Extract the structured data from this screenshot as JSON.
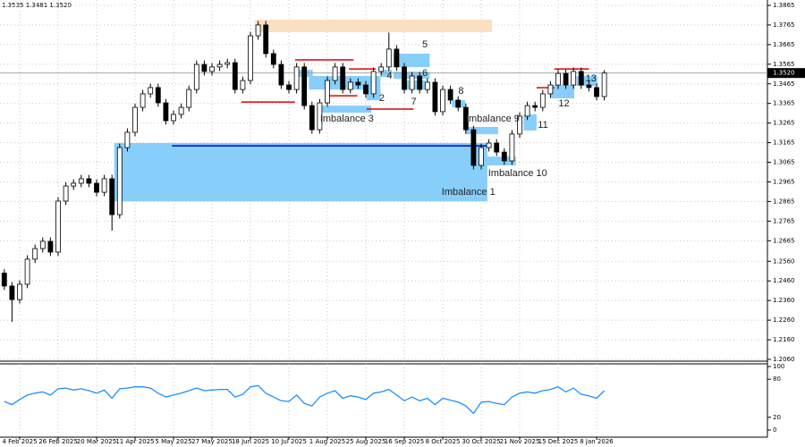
{
  "header_text": "1.3535 1.3481 1.3520",
  "chart_data": [
    {
      "type": "candlestick",
      "categories": [
        null,
        null,
        "4 Feb 2025",
        null,
        null,
        null,
        null,
        "26 Feb 2025",
        null,
        null,
        null,
        null,
        "20 Mar 2025",
        null,
        null,
        null,
        null,
        "11 Apr 2025",
        null,
        null,
        null,
        null,
        "5 May 2025",
        null,
        null,
        null,
        null,
        "27 May 2025",
        null,
        null,
        null,
        null,
        "18 Jun 2025",
        null,
        null,
        null,
        null,
        "10 Jul 2025",
        null,
        null,
        null,
        null,
        "1 Aug 2025",
        null,
        null,
        null,
        null,
        "25 Aug 2025",
        null,
        null,
        null,
        null,
        "16 Sep 2025",
        null,
        null,
        null,
        null,
        "8 Oct 2025",
        null,
        null,
        null,
        null,
        "30 Oct 2025",
        null,
        null,
        null,
        null,
        "21 Nov 2025",
        null,
        null,
        null,
        null,
        "15 Dec 2025",
        null,
        null,
        null,
        null,
        "8 Jan 2026",
        null
      ],
      "open": [
        1.25,
        1.2434,
        1.2365,
        1.2443,
        1.2571,
        1.2625,
        1.2662,
        1.2607,
        1.2867,
        1.2944,
        1.2958,
        1.2981,
        1.2958,
        1.2912,
        1.2981,
        1.2798,
        1.314,
        1.3218,
        1.3345,
        1.3414,
        1.3446,
        1.3368,
        1.3277,
        1.3309,
        1.3345,
        1.3436,
        1.3564,
        1.3528,
        1.3551,
        1.3564,
        1.3573,
        1.3436,
        1.3482,
        1.371,
        1.3765,
        1.3619,
        1.3564,
        1.3459,
        1.3436,
        1.3551,
        1.3354,
        1.3231,
        1.3368,
        1.3482,
        1.3551,
        1.3436,
        1.3473,
        1.3459,
        1.3414,
        1.3528,
        1.3551,
        1.3642,
        1.3551,
        1.3436,
        1.3505,
        1.3436,
        1.3473,
        1.3323,
        1.3436,
        1.3382,
        1.3345,
        1.3231,
        1.3049,
        1.314,
        1.3163,
        1.3117,
        1.3072,
        1.3209,
        1.33,
        1.3354,
        1.3345,
        1.3414,
        1.3459,
        1.3518,
        1.3459,
        1.3528,
        1.3459,
        1.3446,
        1.34
      ],
      "high": [
        1.252,
        1.2454,
        1.2463,
        1.2591,
        1.2645,
        1.2682,
        1.2682,
        1.2887,
        1.2964,
        1.2978,
        1.3001,
        1.3001,
        1.2978,
        1.3001,
        1.3001,
        1.316,
        1.3238,
        1.3365,
        1.3434,
        1.3466,
        1.3466,
        1.3388,
        1.3329,
        1.3365,
        1.3456,
        1.3584,
        1.3584,
        1.3571,
        1.3584,
        1.3593,
        1.3593,
        1.3502,
        1.373,
        1.3785,
        1.3785,
        1.3639,
        1.3584,
        1.3479,
        1.3571,
        1.3571,
        1.3374,
        1.3388,
        1.3502,
        1.3571,
        1.3571,
        1.3493,
        1.3493,
        1.3479,
        1.3548,
        1.3571,
        1.3726,
        1.3662,
        1.3571,
        1.3525,
        1.3525,
        1.3493,
        1.3493,
        1.3456,
        1.3456,
        1.3402,
        1.3365,
        1.3251,
        1.316,
        1.3183,
        1.3183,
        1.3137,
        1.3229,
        1.332,
        1.3374,
        1.3374,
        1.3434,
        1.3479,
        1.3538,
        1.3538,
        1.3548,
        1.3548,
        1.3479,
        1.3466,
        1.3535
      ],
      "low": [
        1.2414,
        1.2251,
        1.2345,
        1.2423,
        1.2551,
        1.2605,
        1.2587,
        1.2587,
        1.2847,
        1.2924,
        1.2938,
        1.2938,
        1.2892,
        1.2892,
        1.2716,
        1.2778,
        1.312,
        1.3198,
        1.3325,
        1.3394,
        1.3348,
        1.3257,
        1.3257,
        1.3289,
        1.3325,
        1.3416,
        1.3508,
        1.3508,
        1.3531,
        1.3544,
        1.3416,
        1.3416,
        1.3462,
        1.369,
        1.3599,
        1.3544,
        1.3439,
        1.3416,
        1.3416,
        1.3334,
        1.3211,
        1.3211,
        1.3348,
        1.3462,
        1.3416,
        1.3416,
        1.3439,
        1.3394,
        1.3394,
        1.3508,
        1.3531,
        1.3531,
        1.3416,
        1.3416,
        1.3416,
        1.3416,
        1.3303,
        1.3303,
        1.3362,
        1.3325,
        1.3211,
        1.3029,
        1.3029,
        1.312,
        1.3097,
        1.3052,
        1.3052,
        1.3189,
        1.328,
        1.3325,
        1.3325,
        1.3394,
        1.3439,
        1.3439,
        1.3439,
        1.3439,
        1.3426,
        1.338,
        1.338
      ],
      "close": [
        1.2434,
        1.2365,
        1.2443,
        1.2571,
        1.2625,
        1.2662,
        1.2607,
        1.2867,
        1.2944,
        1.2958,
        1.2981,
        1.2958,
        1.2912,
        1.2981,
        1.2798,
        1.314,
        1.3218,
        1.3345,
        1.3414,
        1.3446,
        1.3368,
        1.3277,
        1.3309,
        1.3345,
        1.3436,
        1.3564,
        1.3528,
        1.3551,
        1.3564,
        1.3573,
        1.3436,
        1.3482,
        1.371,
        1.3765,
        1.3619,
        1.3564,
        1.3459,
        1.3436,
        1.3551,
        1.3354,
        1.3231,
        1.3368,
        1.3482,
        1.3551,
        1.3436,
        1.3473,
        1.3459,
        1.3414,
        1.3528,
        1.3551,
        1.3642,
        1.3551,
        1.3436,
        1.3505,
        1.3436,
        1.3473,
        1.3323,
        1.3436,
        1.3382,
        1.3345,
        1.3231,
        1.3049,
        1.314,
        1.3163,
        1.3117,
        1.3072,
        1.3209,
        1.33,
        1.3354,
        1.3345,
        1.3414,
        1.3459,
        1.3518,
        1.3459,
        1.3528,
        1.3459,
        1.3446,
        1.34,
        1.352
      ],
      "color": "#000000",
      "ylim": [
        1.206,
        1.3865
      ],
      "yticks": [
        1.3865,
        1.3765,
        1.3665,
        1.3565,
        1.3465,
        1.3365,
        1.3265,
        1.3165,
        1.3065,
        1.2965,
        1.2865,
        1.2765,
        1.2665,
        {
          "value": 1.256,
          "label": "1.2560"
        },
        {
          "value": 1.246,
          "label": "1.2460"
        },
        {
          "value": 1.236,
          "label": "1.2360"
        },
        {
          "value": 1.226,
          "label": "1.2260"
        },
        {
          "value": 1.216,
          "label": "1.2160"
        },
        {
          "value": 1.206,
          "label": "1.2060"
        }
      ],
      "grid": true,
      "last_price": {
        "value": 1.352,
        "label": "1.3520"
      },
      "zones": [
        {
          "range": [
            1.3728,
            1.3792
          ],
          "span": [
            32.6,
            63.4
          ],
          "color": "#fbdfc2"
        },
        {
          "range": [
            1.2866,
            1.3163
          ],
          "span": [
            14.3,
            62.8
          ],
          "color": "#87cefa",
          "label": "Imbalance 1"
        },
        {
          "range": [
            1.35,
            1.3536
          ],
          "span": [
            37.8,
            40.1
          ],
          "color": "#87cefa"
        },
        {
          "range": [
            1.3436,
            1.3505
          ],
          "span": [
            39.6,
            48.9
          ],
          "color": "#87cefa"
        },
        {
          "range": [
            1.3318,
            1.3354
          ],
          "span": [
            40.7,
            47.7
          ],
          "color": "#87cefa",
          "label": "Imbalance 3"
        },
        {
          "range": [
            1.355,
            1.3619
          ],
          "span": [
            50.6,
            55.3
          ],
          "color": "#87cefa",
          "label": "5"
        },
        {
          "range": [
            1.3491,
            1.3527
          ],
          "span": [
            50.6,
            55.3
          ],
          "color": "#87cefa",
          "label": "6"
        },
        {
          "range": [
            1.3436,
            1.3482
          ],
          "span": [
            52.3,
            54.7
          ],
          "color": "#87cefa",
          "label": "7"
        },
        {
          "range": [
            1.3381,
            1.3445
          ],
          "span": [
            47.1,
            48.9
          ],
          "color": "#87cefa",
          "label": "2"
        },
        {
          "range": [
            1.35,
            1.3536
          ],
          "span": [
            48.9,
            50.4
          ],
          "color": "#87cefa",
          "label": "4"
        },
        {
          "range": [
            1.3345,
            1.3381
          ],
          "span": [
            58.2,
            59.9
          ],
          "color": "#87cefa",
          "label": "8"
        },
        {
          "range": [
            1.3208,
            1.3245
          ],
          "span": [
            59.9,
            64.2
          ],
          "color": "#87cefa",
          "label": "Imbalance 9"
        },
        {
          "range": [
            1.3049,
            1.3094
          ],
          "span": [
            62.2,
            66.5
          ],
          "color": "#87cefa",
          "label": "Imbalance 10"
        },
        {
          "range": [
            1.3227,
            1.3309
          ],
          "span": [
            67.5,
            69.2
          ],
          "color": "#87cefa",
          "label": "11"
        },
        {
          "range": [
            1.3391,
            1.3459
          ],
          "span": [
            71.0,
            74.1
          ],
          "color": "#87cefa",
          "label": "12"
        },
        {
          "range": [
            1.3454,
            1.3505
          ],
          "span": [
            74.4,
            77.1
          ],
          "color": "#87cefa",
          "label": "13"
        }
      ],
      "levels": [
        {
          "price": 1.3149,
          "span": [
            21.8,
            62.8
          ],
          "color": "#0000cd"
        },
        {
          "price": 1.3372,
          "span": [
            30.8,
            37.8
          ],
          "color": "#e00000"
        },
        {
          "price": 1.3587,
          "span": [
            37.8,
            45.4
          ],
          "color": "#e00000"
        },
        {
          "price": 1.3541,
          "span": [
            44.8,
            48.3
          ],
          "color": "#e00000"
        },
        {
          "price": 1.3404,
          "span": [
            41.9,
            45.9
          ],
          "color": "#e00000"
        },
        {
          "price": 1.3336,
          "span": [
            47.1,
            53.2
          ],
          "color": "#e00000"
        },
        {
          "price": 1.3445,
          "span": [
            69.2,
            71.5
          ],
          "color": "#e00000"
        },
        {
          "price": 1.3541,
          "span": [
            71.5,
            76.0
          ],
          "color": "#e00000"
        }
      ]
    },
    {
      "type": "line",
      "values": [
        45,
        40,
        48,
        55,
        58,
        60,
        55,
        65,
        66,
        63,
        65,
        62,
        58,
        63,
        50,
        65,
        66,
        68,
        68,
        66,
        58,
        52,
        55,
        58,
        62,
        66,
        62,
        63,
        64,
        64,
        52,
        56,
        68,
        70,
        58,
        52,
        46,
        45,
        55,
        42,
        38,
        52,
        58,
        62,
        50,
        54,
        52,
        48,
        58,
        60,
        64,
        55,
        46,
        52,
        46,
        50,
        40,
        50,
        47,
        44,
        38,
        26,
        44,
        45,
        42,
        40,
        52,
        58,
        60,
        58,
        62,
        64,
        68,
        60,
        66,
        56,
        54,
        50,
        62
      ],
      "color": "#1e90ff",
      "ylim": [
        0,
        100
      ],
      "yticks": [
        0,
        20,
        80,
        100
      ]
    }
  ]
}
